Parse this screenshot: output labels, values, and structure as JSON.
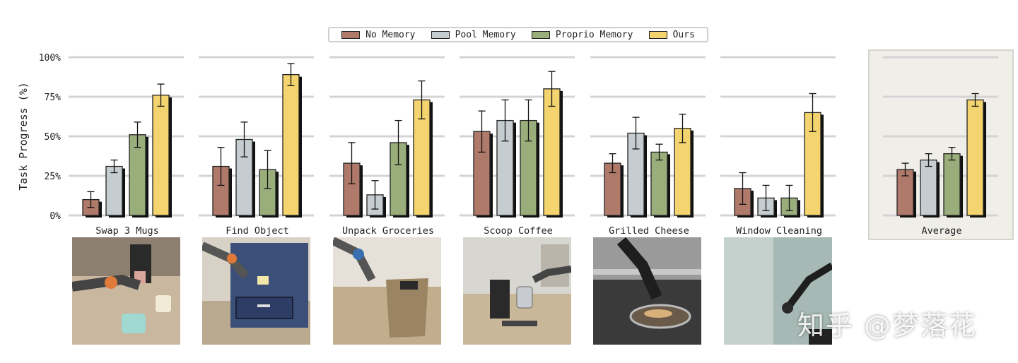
{
  "legend": {
    "items": [
      {
        "label": "No Memory",
        "color": "#b07a6b"
      },
      {
        "label": "Pool Memory",
        "color": "#c5cdd0"
      },
      {
        "label": "Proprio Memory",
        "color": "#9aae7c"
      },
      {
        "label": "Ours",
        "color": "#f3d46e"
      }
    ]
  },
  "chart_data": {
    "type": "bar",
    "ylabel": "Task Progress (%)",
    "yticks": [
      "0%",
      "25%",
      "50%",
      "75%",
      "100%"
    ],
    "ylim": [
      0,
      100
    ],
    "grid": true,
    "legend_position": "top-center",
    "series_names": [
      "No Memory",
      "Pool Memory",
      "Proprio Memory",
      "Ours"
    ],
    "groups": [
      {
        "name": "Swap 3 Mugs",
        "values": [
          10,
          31,
          51,
          76
        ],
        "errors": [
          5,
          4,
          8,
          7
        ]
      },
      {
        "name": "Find Object",
        "values": [
          31,
          48,
          29,
          89
        ],
        "errors": [
          12,
          11,
          12,
          7
        ]
      },
      {
        "name": "Unpack Groceries",
        "values": [
          33,
          13,
          46,
          73
        ],
        "errors": [
          13,
          9,
          14,
          12
        ]
      },
      {
        "name": "Scoop Coffee",
        "values": [
          53,
          60,
          60,
          80
        ],
        "errors": [
          13,
          13,
          13,
          11
        ]
      },
      {
        "name": "Grilled Cheese",
        "values": [
          33,
          52,
          40,
          55
        ],
        "errors": [
          6,
          10,
          5,
          9
        ]
      },
      {
        "name": "Window Cleaning",
        "values": [
          17,
          11,
          11,
          65
        ],
        "errors": [
          10,
          8,
          8,
          12
        ]
      },
      {
        "name": "Average",
        "values": [
          29,
          35,
          39,
          73
        ],
        "errors": [
          4,
          4,
          4,
          4
        ],
        "highlight": true
      }
    ]
  },
  "photos": [
    {
      "name": "swap-3-mugs-photo",
      "theme": "#8a7a66"
    },
    {
      "name": "find-object-photo",
      "theme": "#4a5a7a"
    },
    {
      "name": "unpack-groceries-photo",
      "theme": "#9b8a70"
    },
    {
      "name": "scoop-coffee-photo",
      "theme": "#8a8270"
    },
    {
      "name": "grilled-cheese-photo",
      "theme": "#6a6a6a"
    },
    {
      "name": "window-cleaning-photo",
      "theme": "#8a9a98"
    }
  ],
  "watermark": "知乎 @梦落花"
}
